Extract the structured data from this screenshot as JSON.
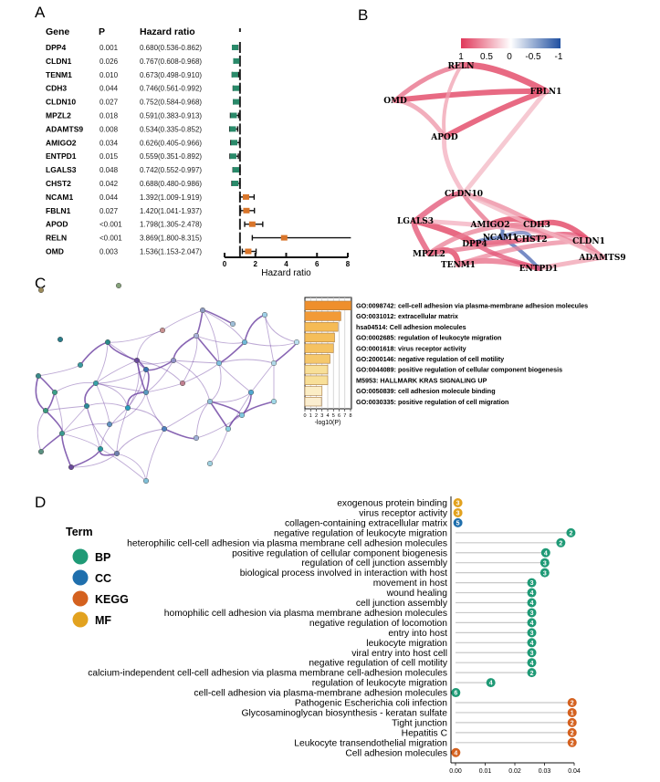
{
  "panels": {
    "a": "A",
    "b": "B",
    "c": "C",
    "d": "D"
  },
  "chart_data": [
    {
      "type": "forest",
      "panel": "A",
      "headers": {
        "gene": "Gene",
        "p": "P",
        "hr": "Hazard ratio"
      },
      "xlabel": "Hazard ratio",
      "xlim": [
        0,
        8
      ],
      "xticks": [
        "0",
        "2",
        "4",
        "6",
        "8"
      ],
      "reference_line": 1,
      "colors": {
        "protective": "#2a8a6a",
        "risk": "#d9752a"
      },
      "rows": [
        {
          "gene": "DPP4",
          "p": "0.001",
          "hr_text": "0.680(0.536-0.862)",
          "hr": 0.68,
          "lo": 0.536,
          "hi": 0.862
        },
        {
          "gene": "CLDN1",
          "p": "0.026",
          "hr_text": "0.767(0.608-0.968)",
          "hr": 0.767,
          "lo": 0.608,
          "hi": 0.968
        },
        {
          "gene": "TENM1",
          "p": "0.010",
          "hr_text": "0.673(0.498-0.910)",
          "hr": 0.673,
          "lo": 0.498,
          "hi": 0.91
        },
        {
          "gene": "CDH3",
          "p": "0.044",
          "hr_text": "0.746(0.561-0.992)",
          "hr": 0.746,
          "lo": 0.561,
          "hi": 0.992
        },
        {
          "gene": "CLDN10",
          "p": "0.027",
          "hr_text": "0.752(0.584-0.968)",
          "hr": 0.752,
          "lo": 0.584,
          "hi": 0.968
        },
        {
          "gene": "MPZL2",
          "p": "0.018",
          "hr_text": "0.591(0.383-0.913)",
          "hr": 0.591,
          "lo": 0.383,
          "hi": 0.913
        },
        {
          "gene": "ADAMTS9",
          "p": "0.008",
          "hr_text": "0.534(0.335-0.852)",
          "hr": 0.534,
          "lo": 0.335,
          "hi": 0.852
        },
        {
          "gene": "AMIGO2",
          "p": "0.034",
          "hr_text": "0.626(0.405-0.966)",
          "hr": 0.626,
          "lo": 0.405,
          "hi": 0.966
        },
        {
          "gene": "ENTPD1",
          "p": "0.015",
          "hr_text": "0.559(0.351-0.892)",
          "hr": 0.559,
          "lo": 0.351,
          "hi": 0.892
        },
        {
          "gene": "LGALS3",
          "p": "0.048",
          "hr_text": "0.742(0.552-0.997)",
          "hr": 0.742,
          "lo": 0.552,
          "hi": 0.997
        },
        {
          "gene": "CHST2",
          "p": "0.042",
          "hr_text": "0.688(0.480-0.986)",
          "hr": 0.688,
          "lo": 0.48,
          "hi": 0.986
        },
        {
          "gene": "NCAM1",
          "p": "0.044",
          "hr_text": "1.392(1.009-1.919)",
          "hr": 1.392,
          "lo": 1.009,
          "hi": 1.919
        },
        {
          "gene": "FBLN1",
          "p": "0.027",
          "hr_text": "1.420(1.041-1.937)",
          "hr": 1.42,
          "lo": 1.041,
          "hi": 1.937
        },
        {
          "gene": "APOD",
          "p": "<0.001",
          "hr_text": "1.798(1.305-2.478)",
          "hr": 1.798,
          "lo": 1.305,
          "hi": 2.478
        },
        {
          "gene": "RELN",
          "p": "<0.001",
          "hr_text": "3.869(1.800-8.315)",
          "hr": 3.869,
          "lo": 1.8,
          "hi": 8.315
        },
        {
          "gene": "OMD",
          "p": "0.003",
          "hr_text": "1.536(1.153-2.047)",
          "hr": 1.536,
          "lo": 1.153,
          "hi": 2.047
        }
      ]
    },
    {
      "type": "bar",
      "panel": "C",
      "orientation": "horizontal",
      "xlabel": "-log10(P)",
      "xlim": [
        0,
        8
      ],
      "xticks": [
        "0",
        "1",
        "2",
        "3",
        "4",
        "5",
        "6",
        "7",
        "8"
      ],
      "categories": [
        "GO:0098742: cell-cell adhesion via plasma-membrane adhesion molecules",
        "GO:0031012: extracellular matrix",
        "hsa04514: Cell adhesion molecules",
        "GO:0002685: regulation of leukocyte migration",
        "GO:0001618: virus receptor activity",
        "GO:2000146: negative regulation of cell motility",
        "GO:0044089: positive regulation of cellular component biogenesis",
        "M5953: HALLMARK KRAS SIGNALING UP",
        "GO:0050839: cell adhesion molecule binding",
        "GO:0030335: positive regulation of cell migration"
      ],
      "values": [
        8.1,
        6.3,
        5.8,
        5.2,
        5.0,
        4.4,
        4.0,
        4.0,
        3.0,
        2.9
      ],
      "colors": [
        "#ef8f2c",
        "#f29a36",
        "#f5bb55",
        "#f5be5a",
        "#f5c262",
        "#f5c86c",
        "#f8df98",
        "#f8df98",
        "#fbedc5",
        "#fbeed0"
      ]
    },
    {
      "type": "lollipop",
      "panel": "D",
      "xlim": [
        0,
        0.04
      ],
      "xticks": [
        "0.00",
        "0.01",
        "0.02",
        "0.03",
        "0.04"
      ],
      "legend": {
        "title": "Term",
        "items": [
          {
            "name": "BP",
            "color": "#1f9a76"
          },
          {
            "name": "CC",
            "color": "#1f6fad"
          },
          {
            "name": "KEGG",
            "color": "#d4611f"
          },
          {
            "name": "MF",
            "color": "#e2a21f"
          }
        ]
      },
      "rows": [
        {
          "term": "exogenous protein binding",
          "category": "MF",
          "value": 0.0008,
          "count": "3"
        },
        {
          "term": "virus receptor activity",
          "category": "MF",
          "value": 0.0008,
          "count": "3"
        },
        {
          "term": "collagen-containing extracellular matrix",
          "category": "CC",
          "value": 0.0008,
          "count": "5"
        },
        {
          "term": "negative regulation of leukocyte migration",
          "category": "BP",
          "value": 0.0389,
          "count": "2"
        },
        {
          "term": "heterophilic cell-cell adhesion via plasma membrane cell adhesion molecules",
          "category": "BP",
          "value": 0.0355,
          "count": "2"
        },
        {
          "term": "positive regulation of cellular component biogenesis",
          "category": "BP",
          "value": 0.0304,
          "count": "4"
        },
        {
          "term": "regulation of cell junction assembly",
          "category": "BP",
          "value": 0.0301,
          "count": "3"
        },
        {
          "term": "biological process involved in interaction with host",
          "category": "BP",
          "value": 0.0301,
          "count": "3"
        },
        {
          "term": "movement in host",
          "category": "BP",
          "value": 0.0257,
          "count": "3"
        },
        {
          "term": "wound healing",
          "category": "BP",
          "value": 0.0257,
          "count": "4"
        },
        {
          "term": "cell junction assembly",
          "category": "BP",
          "value": 0.0257,
          "count": "4"
        },
        {
          "term": "homophilic cell adhesion via plasma membrane adhesion molecules",
          "category": "BP",
          "value": 0.0257,
          "count": "3"
        },
        {
          "term": "negative regulation of locomotion",
          "category": "BP",
          "value": 0.0257,
          "count": "4"
        },
        {
          "term": "entry into host",
          "category": "BP",
          "value": 0.0257,
          "count": "3"
        },
        {
          "term": "leukocyte migration",
          "category": "BP",
          "value": 0.0257,
          "count": "4"
        },
        {
          "term": "viral entry into host cell",
          "category": "BP",
          "value": 0.0257,
          "count": "3"
        },
        {
          "term": "negative regulation of cell motility",
          "category": "BP",
          "value": 0.0257,
          "count": "4"
        },
        {
          "term": "calcium-independent cell-cell adhesion via plasma membrane cell-adhesion molecules",
          "category": "BP",
          "value": 0.0257,
          "count": "2"
        },
        {
          "term": "regulation of leukocyte migration",
          "category": "BP",
          "value": 0.0119,
          "count": "4"
        },
        {
          "term": "cell-cell adhesion via plasma-membrane adhesion molecules",
          "category": "BP",
          "value": 0.0001,
          "count": "6"
        },
        {
          "term": "Pathogenic Escherichia coli infection",
          "category": "KEGG",
          "value": 0.0393,
          "count": "2"
        },
        {
          "term": "Glycosaminoglycan biosynthesis - keratan sulfate",
          "category": "KEGG",
          "value": 0.0393,
          "count": "1"
        },
        {
          "term": "Tight junction",
          "category": "KEGG",
          "value": 0.0393,
          "count": "2"
        },
        {
          "term": "Hepatitis C",
          "category": "KEGG",
          "value": 0.0393,
          "count": "2"
        },
        {
          "term": "Leukocyte transendothelial migration",
          "category": "KEGG",
          "value": 0.0393,
          "count": "2"
        },
        {
          "term": "Cell adhesion molecules",
          "category": "KEGG",
          "value": 0.0001,
          "count": "4"
        }
      ]
    }
  ],
  "network_b": {
    "legend_ticks": [
      "1",
      "0.5",
      "0",
      "-0.5",
      "-1"
    ],
    "legend_colors": {
      "positive": "#e0385a",
      "zero": "#ffffff",
      "negative": "#1f4fa0"
    },
    "nodes": [
      "RELN",
      "OMD",
      "FBLN1",
      "APOD",
      "CLDN10",
      "LGALS3",
      "AMIGO2",
      "CDH3",
      "DPP4",
      "CHST2",
      "CLDN1",
      "MPZL2",
      "NCAM1",
      "TENM1",
      "ADAMTS9",
      "ENTPD1"
    ]
  },
  "network_c": {
    "edge_color": "#6a3fa0"
  }
}
